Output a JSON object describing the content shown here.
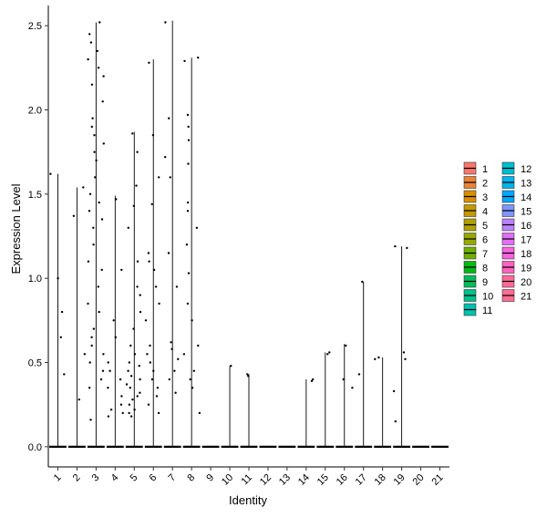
{
  "chart_data": {
    "type": "violin",
    "xlabel": "Identity",
    "ylabel": "Expression Level",
    "ylim": [
      -0.12,
      2.62
    ],
    "yticks": [
      "0.0",
      "0.5",
      "1.0",
      "1.5",
      "2.0",
      "2.5"
    ],
    "ytick_values": [
      0,
      0.5,
      1.0,
      1.5,
      2.0,
      2.5
    ],
    "categories": [
      "1",
      "2",
      "3",
      "4",
      "5",
      "6",
      "7",
      "8",
      "9",
      "10",
      "11",
      "12",
      "13",
      "14",
      "15",
      "16",
      "17",
      "18",
      "19",
      "20",
      "21"
    ],
    "max_values": [
      1.62,
      1.54,
      2.52,
      1.49,
      1.87,
      2.3,
      2.53,
      2.31,
      0,
      0.48,
      0.43,
      0,
      0,
      0.4,
      0.56,
      0.61,
      0.98,
      0.53,
      1.19,
      0,
      0
    ],
    "colors": [
      "#F8766D",
      "#EB8335",
      "#DA8F00",
      "#C49A00",
      "#AFA100",
      "#95A900",
      "#6FB000",
      "#00B813",
      "#00BD5C",
      "#00C08D",
      "#00C0AF",
      "#00BDD0",
      "#00B5EE",
      "#00A7FF",
      "#7F96FF",
      "#BC81FF",
      "#E26EF7",
      "#F863DF",
      "#FF62BF",
      "#FF6A9A",
      "#FF6C91"
    ],
    "points": {
      "1": [
        1.62,
        1.0,
        0.8,
        0.65,
        0.43
      ],
      "2": [
        1.54,
        1.37,
        0.55,
        0.28
      ],
      "3": [
        2.52,
        2.45,
        2.4,
        2.35,
        2.3,
        2.25,
        2.2,
        2.15,
        2.05,
        1.95,
        1.9,
        1.85,
        1.8,
        1.75,
        1.7,
        1.6,
        1.5,
        1.45,
        1.4,
        1.35,
        1.3,
        1.2,
        1.1,
        1.05,
        0.95,
        0.85,
        0.8,
        0.7,
        0.65,
        0.6,
        0.55,
        0.5,
        0.45,
        0.4,
        0.35,
        0.16
      ],
      "4": [
        1.47,
        1.05,
        0.75,
        0.65,
        0.5,
        0.45,
        0.4,
        0.35,
        0.3,
        0.25,
        0.22,
        0.2,
        0.18
      ],
      "5": [
        1.86,
        1.75,
        1.55,
        1.43,
        1.3,
        1.1,
        0.95,
        0.9,
        0.8,
        0.7,
        0.6,
        0.55,
        0.5,
        0.48,
        0.45,
        0.42,
        0.4,
        0.37,
        0.35,
        0.32,
        0.3,
        0.28,
        0.25,
        0.22,
        0.2,
        0.18
      ],
      "6": [
        2.28,
        1.85,
        1.6,
        1.44,
        1.15,
        1.1,
        1.05,
        0.95,
        0.85,
        0.75,
        0.6,
        0.55,
        0.5,
        0.45,
        0.4,
        0.35,
        0.3,
        0.25,
        0.2
      ],
      "7": [
        2.52,
        1.95,
        1.72,
        1.6,
        1.15,
        0.95,
        0.62,
        0.58,
        0.52,
        0.45,
        0.4,
        0.32
      ],
      "8": [
        2.31,
        2.29,
        1.97,
        1.9,
        1.82,
        1.68,
        1.45,
        1.4,
        1.3,
        1.2,
        1.03,
        0.85,
        0.75,
        0.6,
        0.55,
        0.45,
        0.4,
        0.35,
        0.2
      ],
      "10": [
        0.48
      ],
      "11": [
        0.43,
        0.42
      ],
      "14": [
        0.4,
        0.39
      ],
      "15": [
        0.56,
        0.55
      ],
      "16": [
        0.6,
        0.4,
        0.35
      ],
      "17": [
        0.98,
        0.43
      ],
      "18": [
        0.53,
        0.52
      ],
      "19": [
        1.19,
        1.18,
        0.56,
        0.52,
        0.33,
        0.15
      ]
    },
    "legend": {
      "position": "right",
      "columns": [
        [
          "1",
          "2",
          "3",
          "4",
          "5",
          "6",
          "7",
          "8",
          "9",
          "10",
          "11"
        ],
        [
          "12",
          "13",
          "14",
          "15",
          "16",
          "17",
          "18",
          "19",
          "20",
          "21"
        ]
      ]
    }
  }
}
